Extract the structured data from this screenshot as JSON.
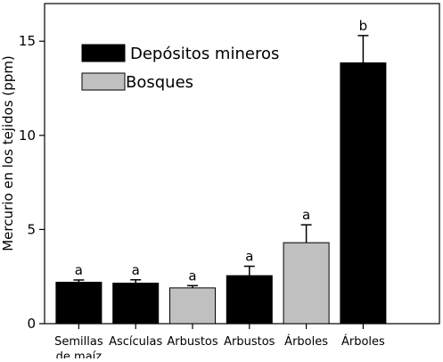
{
  "chart_data": {
    "type": "bar",
    "title": "",
    "xlabel": "",
    "ylabel": "Mercurio en los tejidos (ppm)",
    "ylim": [
      0,
      17
    ],
    "yticks": [
      0,
      5,
      10,
      15
    ],
    "grid": false,
    "legend_position": "top-left",
    "categories": [
      [
        "Semillas",
        "de maíz"
      ],
      [
        "Ascículas"
      ],
      [
        "Arbustos"
      ],
      [
        "Arbustos"
      ],
      [
        "Árboles"
      ],
      [
        "Árboles"
      ]
    ],
    "values": [
      2.2,
      2.15,
      1.9,
      2.55,
      4.3,
      13.85
    ],
    "errors": [
      0.12,
      0.18,
      0.12,
      0.5,
      0.95,
      1.45
    ],
    "letters": [
      "a",
      "a",
      "a",
      "a",
      "a",
      "b"
    ],
    "bar_groups": [
      "mineros",
      "mineros",
      "bosques",
      "mineros",
      "bosques",
      "mineros"
    ],
    "legend": [
      {
        "key": "mineros",
        "label": "Depósitos mineros",
        "color": "#000000"
      },
      {
        "key": "bosques",
        "label": "Bosques",
        "color": "#c0c0c0"
      }
    ]
  }
}
